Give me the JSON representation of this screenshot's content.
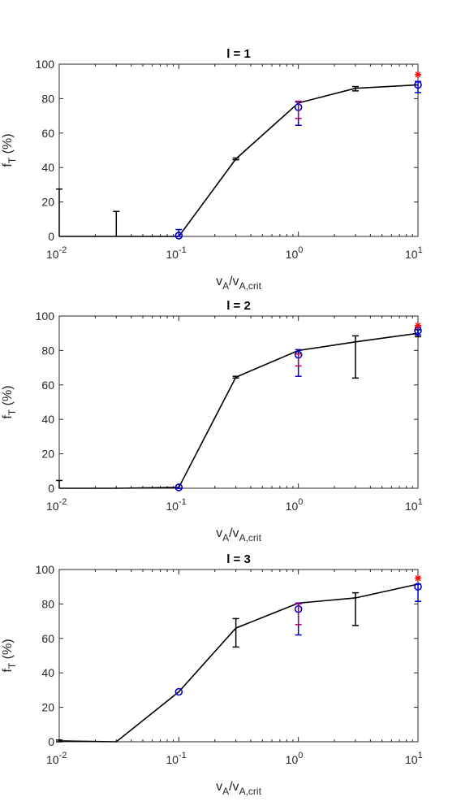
{
  "chart_data": [
    {
      "type": "line",
      "title": "l = 1",
      "xlabel": "v_A/v_A,crit",
      "ylabel": "f_T (%)",
      "xscale": "log",
      "xlim": [
        0.01,
        10
      ],
      "ylim": [
        0,
        100
      ],
      "yticks": [
        0,
        20,
        40,
        60,
        80,
        100
      ],
      "xticks": [
        {
          "base": "10",
          "exp": "-2"
        },
        {
          "base": "10",
          "exp": "-1"
        },
        {
          "base": "10",
          "exp": "0"
        },
        {
          "base": "10",
          "exp": "1"
        }
      ],
      "series": [
        {
          "color": "#000000",
          "style": "line-errorbar",
          "x": [
            0.01,
            0.03,
            0.1,
            0.3,
            1,
            3,
            10
          ],
          "y": [
            0,
            0,
            0,
            45,
            77.5,
            86,
            88
          ],
          "err_lo": [
            0,
            0,
            0,
            0.5,
            0,
            1.5,
            0
          ],
          "err_hi": [
            27.5,
            14.5,
            0,
            0.5,
            0,
            1,
            0
          ]
        },
        {
          "color": "#0000cc",
          "style": "circle-errorbar",
          "x": [
            0.1,
            1,
            10
          ],
          "y": [
            0.5,
            75,
            88
          ],
          "err_lo": [
            0.5,
            10.5,
            4.5
          ],
          "err_hi": [
            3.5,
            3,
            2
          ]
        },
        {
          "color": "#b0005a",
          "style": "plus-errorbar",
          "x": [
            1
          ],
          "y": [
            68.5
          ],
          "err_lo": [
            0
          ],
          "err_hi": [
            10
          ]
        },
        {
          "color": "#ff0000",
          "style": "asterisk",
          "x": [
            10
          ],
          "y": [
            94
          ]
        }
      ]
    },
    {
      "type": "line",
      "title": "l = 2",
      "xlabel": "v_A/v_A,crit",
      "ylabel": "f_T (%)",
      "xscale": "log",
      "xlim": [
        0.01,
        10
      ],
      "ylim": [
        0,
        100
      ],
      "yticks": [
        0,
        20,
        40,
        60,
        80,
        100
      ],
      "xticks": [
        {
          "base": "10",
          "exp": "-2"
        },
        {
          "base": "10",
          "exp": "-1"
        },
        {
          "base": "10",
          "exp": "0"
        },
        {
          "base": "10",
          "exp": "1"
        }
      ],
      "series": [
        {
          "color": "#000000",
          "style": "line-errorbar",
          "x": [
            0.01,
            0.03,
            0.1,
            0.3,
            1,
            3,
            10
          ],
          "y": [
            0,
            0,
            0.5,
            64.5,
            80,
            85,
            90
          ],
          "err_lo": [
            0,
            0,
            0.5,
            0.5,
            0,
            21,
            2
          ],
          "err_hi": [
            4.5,
            0,
            0,
            0.5,
            0,
            3.5,
            2
          ]
        },
        {
          "color": "#0000cc",
          "style": "circle-errorbar",
          "x": [
            0.1,
            1,
            10
          ],
          "y": [
            0.5,
            77.5,
            91.5
          ],
          "err_lo": [
            0.5,
            12.5,
            2.5
          ],
          "err_hi": [
            0,
            3,
            2
          ]
        },
        {
          "color": "#b0005a",
          "style": "plus-errorbar",
          "x": [
            1
          ],
          "y": [
            71
          ],
          "err_lo": [
            0
          ],
          "err_hi": [
            7
          ]
        },
        {
          "color": "#ff0000",
          "style": "asterisk",
          "x": [
            10
          ],
          "y": [
            94.5
          ]
        }
      ]
    },
    {
      "type": "line",
      "title": "l = 3",
      "xlabel": "v_A/v_A,crit",
      "ylabel": "f_T (%)",
      "xscale": "log",
      "xlim": [
        0.01,
        10
      ],
      "ylim": [
        0,
        100
      ],
      "yticks": [
        0,
        20,
        40,
        60,
        80,
        100
      ],
      "xticks": [
        {
          "base": "10",
          "exp": "-2"
        },
        {
          "base": "10",
          "exp": "-1"
        },
        {
          "base": "10",
          "exp": "0"
        },
        {
          "base": "10",
          "exp": "1"
        }
      ],
      "series": [
        {
          "color": "#000000",
          "style": "line-errorbar",
          "x": [
            0.01,
            0.03,
            0.1,
            0.3,
            1,
            3,
            10
          ],
          "y": [
            0.5,
            0,
            29,
            66,
            80.5,
            83.5,
            91.5
          ],
          "err_lo": [
            0.5,
            0,
            0,
            11,
            0,
            16,
            0
          ],
          "err_hi": [
            0.5,
            0,
            0,
            5.5,
            0,
            3,
            0
          ]
        },
        {
          "color": "#0000cc",
          "style": "circle-errorbar",
          "x": [
            0.1,
            1,
            10
          ],
          "y": [
            29,
            77,
            90
          ],
          "err_lo": [
            0,
            15,
            8.5
          ],
          "err_hi": [
            0,
            3.5,
            1.5
          ]
        },
        {
          "color": "#b0005a",
          "style": "plus-errorbar",
          "x": [
            1
          ],
          "y": [
            68
          ],
          "err_lo": [
            0
          ],
          "err_hi": [
            12
          ]
        },
        {
          "color": "#ff0000",
          "style": "asterisk",
          "x": [
            10
          ],
          "y": [
            95
          ]
        }
      ]
    }
  ]
}
